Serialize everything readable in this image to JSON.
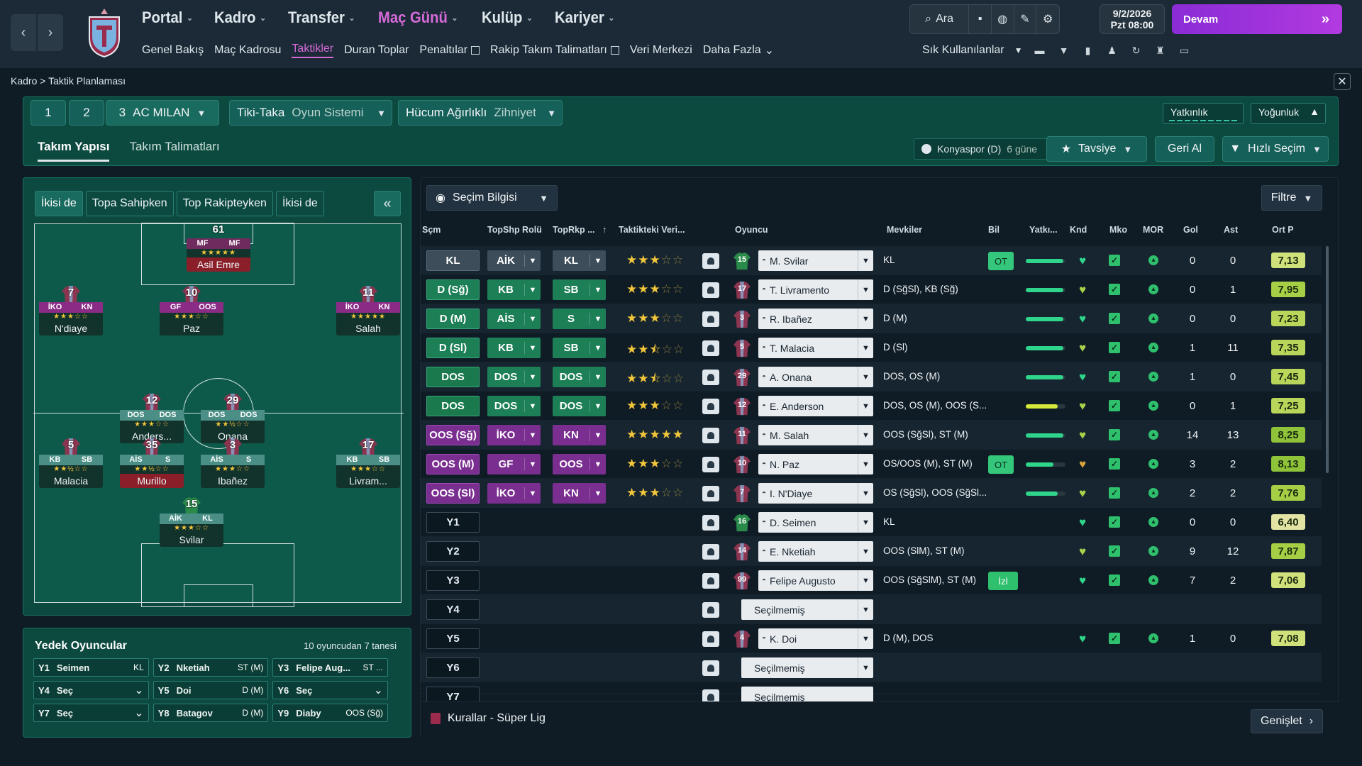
{
  "nav": {
    "back_icon": "chevron-left-icon",
    "forward_icon": "chevron-right-icon",
    "main": [
      {
        "label": "Portal",
        "active": false
      },
      {
        "label": "Kadro",
        "active": false
      },
      {
        "label": "Transfer",
        "active": false
      },
      {
        "label": "Maç Günü",
        "active": true
      },
      {
        "label": "Kulüp",
        "active": false
      },
      {
        "label": "Kariyer",
        "active": false
      }
    ],
    "sub": [
      {
        "label": "Genel Bakış"
      },
      {
        "label": "Maç Kadrosu"
      },
      {
        "label": "Taktikler",
        "active": true
      },
      {
        "label": "Duran Toplar"
      },
      {
        "label": "Penaltılar",
        "external": true
      },
      {
        "label": "Rakip Takım Talimatları",
        "external": true
      },
      {
        "label": "Veri Merkezi"
      },
      {
        "label": "Daha Fazla"
      }
    ],
    "search_label": "Ara",
    "date_line1": "9/2/2026",
    "date_line2": "Pzt 08:00",
    "continue_label": "Devam",
    "favs_label": "Sık Kullanılanlar"
  },
  "breadcrumb": {
    "root": "Kadro",
    "sep": ">",
    "current": "Taktik Planlaması"
  },
  "header": {
    "tac1": "1",
    "tac2": "2",
    "tac3_num": "3",
    "tac3_name": "AC MILAN",
    "system_name": "Tiki-Taka",
    "system_label": "Oyun Sistemi",
    "mentality_name": "Hücum Ağırlıklı",
    "mentality_label": "Zihniyet",
    "familiarity_label": "Yatkınlık",
    "intensity_label": "Yoğunluk",
    "tab_team": "Takım Yapısı",
    "tab_instructions": "Takım Talimatları",
    "next_match": "Konyaspor (D)",
    "next_in": "6 güne",
    "advice_label": "Tavsiye",
    "undo_label": "Geri Al",
    "quick_label": "Hızlı Seçim"
  },
  "pitch_tabs": [
    "İkisi de",
    "Topa Sahipken",
    "Top Rakipteyken",
    "İkisi de"
  ],
  "pitch_players": [
    {
      "num": "61",
      "r1": "MF",
      "r2": "MF",
      "stars": "★★★★★",
      "name": "Asil Emre",
      "red": true,
      "style": "m"
    },
    {
      "num": "7",
      "r1": "İKO",
      "r2": "KN",
      "stars": "★★★☆☆",
      "name": "N'diaye",
      "red": false,
      "style": "p"
    },
    {
      "num": "10",
      "r1": "GF",
      "r2": "OOS",
      "stars": "★★★☆☆",
      "name": "Paz",
      "red": false,
      "style": "p"
    },
    {
      "num": "11",
      "r1": "İKO",
      "r2": "KN",
      "stars": "★★★★★",
      "name": "Salah",
      "red": false,
      "style": "p"
    },
    {
      "num": "12",
      "r1": "DOS",
      "r2": "DOS",
      "stars": "★★★☆☆",
      "name": "Anders...",
      "red": false,
      "style": "g"
    },
    {
      "num": "29",
      "r1": "DOS",
      "r2": "DOS",
      "stars": "★★½☆☆",
      "name": "Onana",
      "red": false,
      "style": "g"
    },
    {
      "num": "5",
      "r1": "KB",
      "r2": "SB",
      "stars": "★★½☆☆",
      "name": "Malacia",
      "red": false,
      "style": "g"
    },
    {
      "num": "35",
      "r1": "AİS",
      "r2": "S",
      "stars": "★★½☆☆",
      "name": "Murillo",
      "red": true,
      "style": "g"
    },
    {
      "num": "3",
      "r1": "AİS",
      "r2": "S",
      "stars": "★★★☆☆",
      "name": "Ibañez",
      "red": false,
      "style": "g"
    },
    {
      "num": "17",
      "r1": "KB",
      "r2": "SB",
      "stars": "★★★☆☆",
      "name": "Livram...",
      "red": false,
      "style": "g"
    },
    {
      "num": "15",
      "r1": "AİK",
      "r2": "KL",
      "stars": "★★★☆☆",
      "name": "Svilar",
      "red": false,
      "style": "g"
    }
  ],
  "subs": {
    "title": "Yedek Oyuncular",
    "count": "10 oyuncudan 7 tanesi",
    "items": [
      {
        "slot": "Y1",
        "name": "Seimen",
        "pos": "KL"
      },
      {
        "slot": "Y2",
        "name": "Nketiah",
        "pos": "ST (M)"
      },
      {
        "slot": "Y3",
        "name": "Felipe Aug...",
        "pos": "ST ..."
      },
      {
        "slot": "Y4",
        "name": "Seç",
        "pos": ""
      },
      {
        "slot": "Y5",
        "name": "Doi",
        "pos": "D (M)"
      },
      {
        "slot": "Y6",
        "name": "Seç",
        "pos": ""
      },
      {
        "slot": "Y7",
        "name": "Seç",
        "pos": ""
      },
      {
        "slot": "Y8",
        "name": "Batagov",
        "pos": "D (M)"
      },
      {
        "slot": "Y9",
        "name": "Diaby",
        "pos": "OOS (Sğ)"
      }
    ]
  },
  "table": {
    "selection_label": "Seçim Bilgisi",
    "filter_label": "Filtre",
    "cols": {
      "scm": "Sçm",
      "topshp": "TopShp Rolü",
      "toprkp": "TopRkp ...",
      "taktik": "Taktikteki Veri...",
      "oyuncu": "Oyuncu",
      "mevkiler": "Mevkiler",
      "bil": "Bil",
      "yatki": "Yatkı...",
      "knd": "Knd",
      "mko": "Mko",
      "mor": "MOR",
      "gol": "Gol",
      "ast": "Ast",
      "ortp": "Ort P"
    },
    "rows": [
      {
        "pos": "KL",
        "pc": "gk",
        "r1": "AİK",
        "r2": "KL",
        "rc": "gk",
        "st": 3,
        "kit": "15",
        "kg": true,
        "player": "M. Svilar",
        "mev": "KL",
        "bil": "OT",
        "bar": 95,
        "bc": "#2fd58a",
        "h": "g",
        "gol": "0",
        "ast": "0",
        "rate": "7,13",
        "rc2": "d"
      },
      {
        "pos": "D (Sğ)",
        "pc": "df",
        "r1": "KB",
        "r2": "SB",
        "rc": "df",
        "st": 3,
        "kit": "17",
        "player": "T. Livramento",
        "mev": "D (SğSl), KB (Sğ)",
        "bil": "",
        "bar": 95,
        "bc": "#2fd58a",
        "h": "y",
        "gol": "0",
        "ast": "1",
        "rate": "7,95",
        "rc2": "b"
      },
      {
        "pos": "D (M)",
        "pc": "df",
        "r1": "AİS",
        "r2": "S",
        "rc": "df",
        "st": 3,
        "kit": "3",
        "player": "R. Ibañez",
        "mev": "D (M)",
        "bil": "",
        "bar": 95,
        "bc": "#2fd58a",
        "h": "g",
        "gol": "0",
        "ast": "0",
        "rate": "7,23",
        "rc2": "c"
      },
      {
        "pos": "D (Sl)",
        "pc": "df",
        "r1": "KB",
        "r2": "SB",
        "rc": "df",
        "st": 2.5,
        "kit": "5",
        "player": "T. Malacia",
        "mev": "D (Sl)",
        "bil": "",
        "bar": 95,
        "bc": "#2fd58a",
        "h": "y",
        "gol": "1",
        "ast": "11",
        "rate": "7,35",
        "rc2": "c"
      },
      {
        "pos": "DOS",
        "pc": "dm",
        "r1": "DOS",
        "r2": "DOS",
        "rc": "df",
        "st": 2.5,
        "kit": "29",
        "player": "A. Onana",
        "mev": "DOS, OS (M)",
        "bil": "",
        "bar": 95,
        "bc": "#2fd58a",
        "h": "g",
        "gol": "1",
        "ast": "0",
        "rate": "7,45",
        "rc2": "c"
      },
      {
        "pos": "DOS",
        "pc": "dm",
        "r1": "DOS",
        "r2": "DOS",
        "rc": "df",
        "st": 3,
        "kit": "12",
        "player": "E. Anderson",
        "mev": "DOS, OS (M), OOS (S...",
        "bil": "",
        "bar": 80,
        "bc": "#d6e83a",
        "h": "y",
        "gol": "0",
        "ast": "1",
        "rate": "7,25",
        "rc2": "c"
      },
      {
        "pos": "OOS (Sğ)",
        "pc": "am",
        "r1": "İKO",
        "r2": "KN",
        "rc": "am",
        "st": 5,
        "kit": "11",
        "player": "M. Salah",
        "mev": "OOS (SğSl), ST (M)",
        "bil": "",
        "bar": 95,
        "bc": "#2fd58a",
        "h": "y",
        "gol": "14",
        "ast": "13",
        "rate": "8,25",
        "rc2": "a"
      },
      {
        "pos": "OOS (M)",
        "pc": "am",
        "r1": "GF",
        "r2": "OOS",
        "rc": "am",
        "st": 3,
        "kit": "10",
        "player": "N. Paz",
        "mev": "OS/OOS (M), ST (M)",
        "bil": "OT",
        "bar": 70,
        "bc": "#2fd58a",
        "h": "o",
        "gol": "3",
        "ast": "2",
        "rate": "8,13",
        "rc2": "a"
      },
      {
        "pos": "OOS (Sl)",
        "pc": "am",
        "r1": "İKO",
        "r2": "KN",
        "rc": "am",
        "st": 3,
        "kit": "7",
        "player": "I. N'Diaye",
        "mev": "OS (SğSl), OOS (SğSl...",
        "bil": "",
        "bar": 80,
        "bc": "#2fd58a",
        "h": "y",
        "gol": "2",
        "ast": "2",
        "rate": "7,76",
        "rc2": "b"
      },
      {
        "pos": "Y1",
        "pc": "sb",
        "r1": "",
        "r2": "",
        "rc": "",
        "st": 0,
        "kit": "16",
        "kg": true,
        "player": "D. Seimen",
        "mev": "KL",
        "bil": "",
        "bar": 0,
        "bc": "",
        "h": "g",
        "gol": "0",
        "ast": "0",
        "rate": "6,40",
        "rc2": "e"
      },
      {
        "pos": "Y2",
        "pc": "sb",
        "r1": "",
        "r2": "",
        "rc": "",
        "st": 0,
        "kit": "14",
        "player": "E. Nketiah",
        "mev": "OOS (SlM), ST (M)",
        "bil": "",
        "bar": 0,
        "bc": "",
        "h": "y",
        "gol": "9",
        "ast": "12",
        "rate": "7,87",
        "rc2": "b"
      },
      {
        "pos": "Y3",
        "pc": "sb",
        "r1": "",
        "r2": "",
        "rc": "",
        "st": 0,
        "kit": "99",
        "player": "Felipe Augusto",
        "mev": "OOS (SğSlM), ST (M)",
        "bil": "İzl",
        "bar": 0,
        "bc": "",
        "h": "g",
        "gol": "7",
        "ast": "2",
        "rate": "7,06",
        "rc2": "d"
      },
      {
        "pos": "Y4",
        "pc": "sb",
        "r1": "",
        "r2": "",
        "rc": "",
        "st": 0,
        "kit": "",
        "player": "Seçilmemiş",
        "mev": "",
        "bil": "",
        "bar": 0,
        "bc": "",
        "h": "",
        "gol": "",
        "ast": "",
        "rate": "",
        "rc2": ""
      },
      {
        "pos": "Y5",
        "pc": "sb",
        "r1": "",
        "r2": "",
        "rc": "",
        "st": 0,
        "kit": "4",
        "player": "K. Doi",
        "mev": "D (M), DOS",
        "bil": "",
        "bar": 0,
        "bc": "",
        "h": "g",
        "gol": "1",
        "ast": "0",
        "rate": "7,08",
        "rc2": "d"
      },
      {
        "pos": "Y6",
        "pc": "sb",
        "r1": "",
        "r2": "",
        "rc": "",
        "st": 0,
        "kit": "",
        "player": "Seçilmemiş",
        "mev": "",
        "bil": "",
        "bar": 0,
        "bc": "",
        "h": "",
        "gol": "",
        "ast": "",
        "rate": "",
        "rc2": ""
      }
    ],
    "partial_row_pos": "Y7",
    "partial_row_player": "Seçilmemiş",
    "footer_label": "Kurallar - Süper Lig",
    "expand_label": "Genişlet"
  },
  "colors": {
    "accent": "#d66ad9",
    "panel": "#0c4a40",
    "continue": "#b23ae0"
  }
}
